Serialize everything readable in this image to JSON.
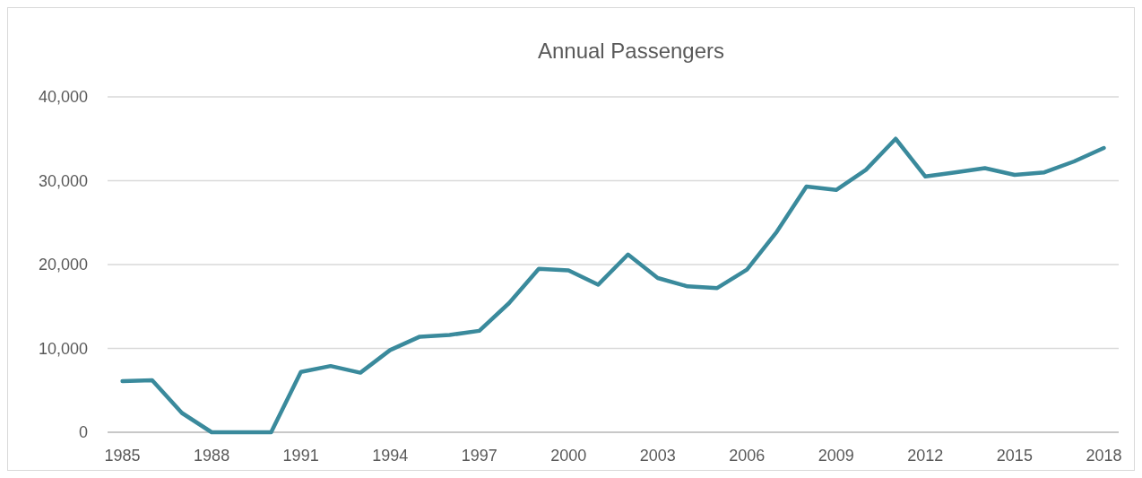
{
  "chart_data": {
    "type": "line",
    "title": "Annual Passengers",
    "x": [
      1985,
      1986,
      1987,
      1988,
      1989,
      1990,
      1991,
      1992,
      1993,
      1994,
      1995,
      1996,
      1997,
      1998,
      1999,
      2000,
      2001,
      2002,
      2003,
      2004,
      2005,
      2006,
      2007,
      2008,
      2009,
      2010,
      2011,
      2012,
      2013,
      2014,
      2015,
      2016,
      2017,
      2018
    ],
    "series": [
      {
        "color": "#3a8a9c",
        "values": [
          6100,
          6200,
          2300,
          0,
          0,
          0,
          7200,
          7900,
          7100,
          9800,
          11400,
          11600,
          12100,
          15400,
          19500,
          19300,
          17600,
          21200,
          18400,
          17400,
          17200,
          19400,
          23900,
          29300,
          28900,
          31300,
          35000,
          30500,
          31000,
          31500,
          30700,
          31000,
          32300,
          33900
        ]
      }
    ],
    "xlim": [
      1984.5,
      2018.5
    ],
    "xticks": [
      1985,
      1988,
      1991,
      1994,
      1997,
      2000,
      2003,
      2006,
      2009,
      2012,
      2015,
      2018
    ],
    "ylim": [
      0,
      40000
    ],
    "yticks": [
      {
        "value": 0,
        "label": "0"
      },
      {
        "value": 10000,
        "label": "10,000"
      },
      {
        "value": 20000,
        "label": "20,000"
      },
      {
        "value": 30000,
        "label": "30,000"
      },
      {
        "value": 40000,
        "label": "40,000"
      }
    ],
    "grid": "y",
    "marker": "none",
    "line_style": "solid"
  }
}
